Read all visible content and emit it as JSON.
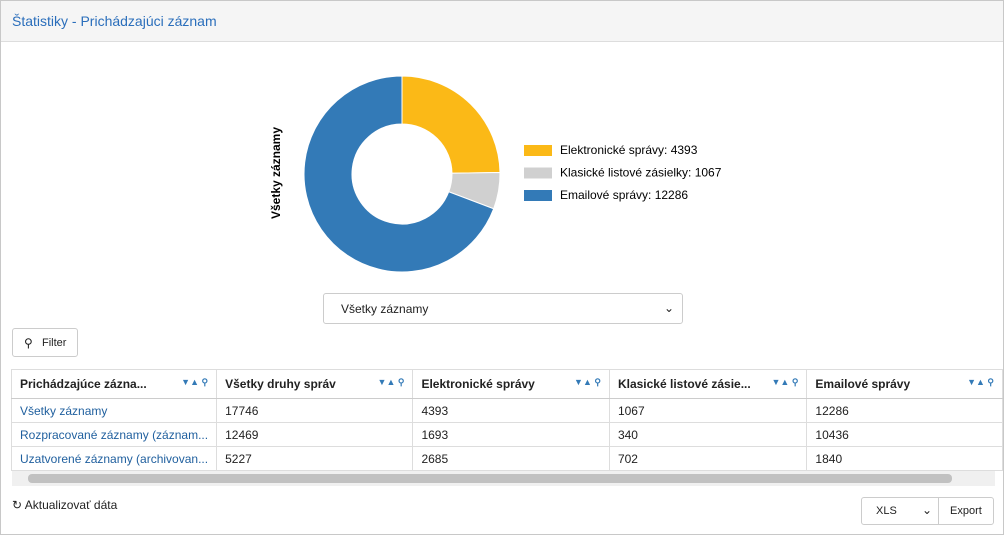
{
  "header": {
    "title": "Štatistiky - Prichádzajúci záznam"
  },
  "chart_data": {
    "type": "pie",
    "donut": true,
    "y_label": "Všetky záznamy",
    "categories": [
      "Elektronické správy: 4393",
      "Klasické listové zásielky: 1067",
      "Emailové správy: 12286"
    ],
    "values": [
      4393,
      1067,
      12286
    ],
    "colors": [
      "#fbb917",
      "#d0d0d0",
      "#337ab7"
    ]
  },
  "selector": {
    "value": "Všetky záznamy"
  },
  "filter_button": {
    "label": "Filter"
  },
  "table": {
    "columns": [
      "Prichádzajúce zázna...",
      "Všetky druhy správ",
      "Elektronické správy",
      "Klasické listové zásie...",
      "Emailové správy"
    ],
    "rows": [
      [
        "Všetky záznamy",
        17746,
        4393,
        1067,
        12286
      ],
      [
        "Rozpracované záznamy (záznam...",
        12469,
        1693,
        340,
        10436
      ],
      [
        "Uzatvorené záznamy (archivovan...",
        5227,
        2685,
        702,
        1840
      ]
    ]
  },
  "footer": {
    "refresh": "Aktualizovať dáta",
    "format": "XLS",
    "export": "Export"
  }
}
